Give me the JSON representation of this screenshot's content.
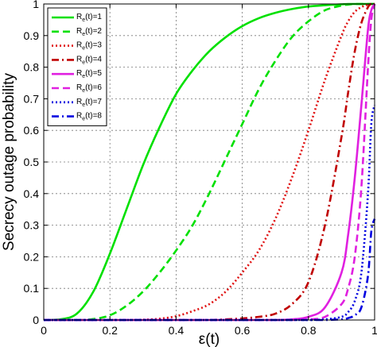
{
  "chart_data": {
    "type": "line",
    "title": "",
    "xlabel": "ε(t)",
    "ylabel": "Secrecy outage probability",
    "xlim": [
      0,
      1
    ],
    "ylim": [
      0,
      1
    ],
    "grid": true,
    "legend_position": "top-left",
    "x_ticks": [
      "0",
      "0.2",
      "0.4",
      "0.6",
      "0.8",
      "1"
    ],
    "y_ticks": [
      "0",
      "0.1",
      "0.2",
      "0.3",
      "0.4",
      "0.5",
      "0.6",
      "0.7",
      "0.8",
      "0.9",
      "1"
    ],
    "x": [
      0,
      0.05,
      0.1,
      0.15,
      0.2,
      0.25,
      0.3,
      0.35,
      0.4,
      0.45,
      0.5,
      0.55,
      0.6,
      0.65,
      0.7,
      0.75,
      0.8,
      0.85,
      0.9,
      0.92,
      0.94,
      0.96,
      0.98,
      0.99,
      1
    ],
    "series": [
      {
        "label_main": "R",
        "label_sub": "e",
        "label_tail": "(t)=1",
        "color": "#00e000",
        "dash": "solid",
        "values": [
          0,
          0.002,
          0.02,
          0.09,
          0.21,
          0.35,
          0.49,
          0.61,
          0.715,
          0.79,
          0.85,
          0.895,
          0.93,
          0.955,
          0.972,
          0.984,
          0.992,
          0.996,
          0.999,
          1,
          1,
          1,
          1,
          1,
          1
        ]
      },
      {
        "label_main": "R",
        "label_sub": "e",
        "label_tail": "(t)=2",
        "color": "#00e000",
        "dash": "dashed",
        "values": [
          0,
          0,
          0,
          0.003,
          0.015,
          0.045,
          0.09,
          0.15,
          0.22,
          0.3,
          0.4,
          0.51,
          0.62,
          0.73,
          0.82,
          0.895,
          0.945,
          0.98,
          0.995,
          0.998,
          1,
          1,
          1,
          1,
          1
        ]
      },
      {
        "label_main": "R",
        "label_sub": "e",
        "label_tail": "(t)=3",
        "color": "#e01010",
        "dash": "dotted",
        "values": [
          0,
          0,
          0,
          0,
          0,
          0,
          0.001,
          0.004,
          0.012,
          0.028,
          0.05,
          0.09,
          0.15,
          0.22,
          0.32,
          0.45,
          0.6,
          0.76,
          0.9,
          0.945,
          0.975,
          0.99,
          0.998,
          1,
          1
        ]
      },
      {
        "label_main": "R",
        "label_sub": "e",
        "label_tail": "(t)=4",
        "color": "#c00000",
        "dash": "dashdot",
        "values": [
          0,
          0,
          0,
          0,
          0,
          0,
          0,
          0,
          0,
          0,
          0,
          0.002,
          0.005,
          0.01,
          0.02,
          0.05,
          0.12,
          0.3,
          0.58,
          0.72,
          0.85,
          0.94,
          0.99,
          1,
          1
        ]
      },
      {
        "label_main": "R",
        "label_sub": "e",
        "label_tail": "(t)=5",
        "color": "#e020e0",
        "dash": "solid",
        "values": [
          0,
          0,
          0,
          0,
          0,
          0,
          0,
          0,
          0,
          0,
          0,
          0,
          0,
          0,
          0,
          0.002,
          0.01,
          0.04,
          0.15,
          0.27,
          0.45,
          0.68,
          0.92,
          0.98,
          1
        ]
      },
      {
        "label_main": "R",
        "label_sub": "e",
        "label_tail": "(t)=6",
        "color": "#e020e0",
        "dash": "dashed",
        "values": [
          0,
          0,
          0,
          0,
          0,
          0,
          0,
          0,
          0,
          0,
          0,
          0,
          0,
          0,
          0,
          0,
          0.002,
          0.01,
          0.05,
          0.1,
          0.2,
          0.42,
          0.8,
          0.95,
          1
        ]
      },
      {
        "label_main": "R",
        "label_sub": "e",
        "label_tail": "(t)=7",
        "color": "#0000e0",
        "dash": "dotted",
        "values": [
          0,
          0,
          0,
          0,
          0,
          0,
          0,
          0,
          0,
          0,
          0,
          0,
          0,
          0,
          0,
          0,
          0,
          0.002,
          0.01,
          0.025,
          0.06,
          0.15,
          0.4,
          0.62,
          0.68
        ]
      },
      {
        "label_main": "R",
        "label_sub": "e",
        "label_tail": "(t)=8",
        "color": "#0000e0",
        "dash": "dashdot",
        "values": [
          0,
          0,
          0,
          0,
          0,
          0,
          0,
          0,
          0,
          0,
          0,
          0,
          0,
          0,
          0,
          0,
          0,
          0,
          0.002,
          0.006,
          0.015,
          0.04,
          0.14,
          0.28,
          0.32
        ]
      }
    ]
  }
}
